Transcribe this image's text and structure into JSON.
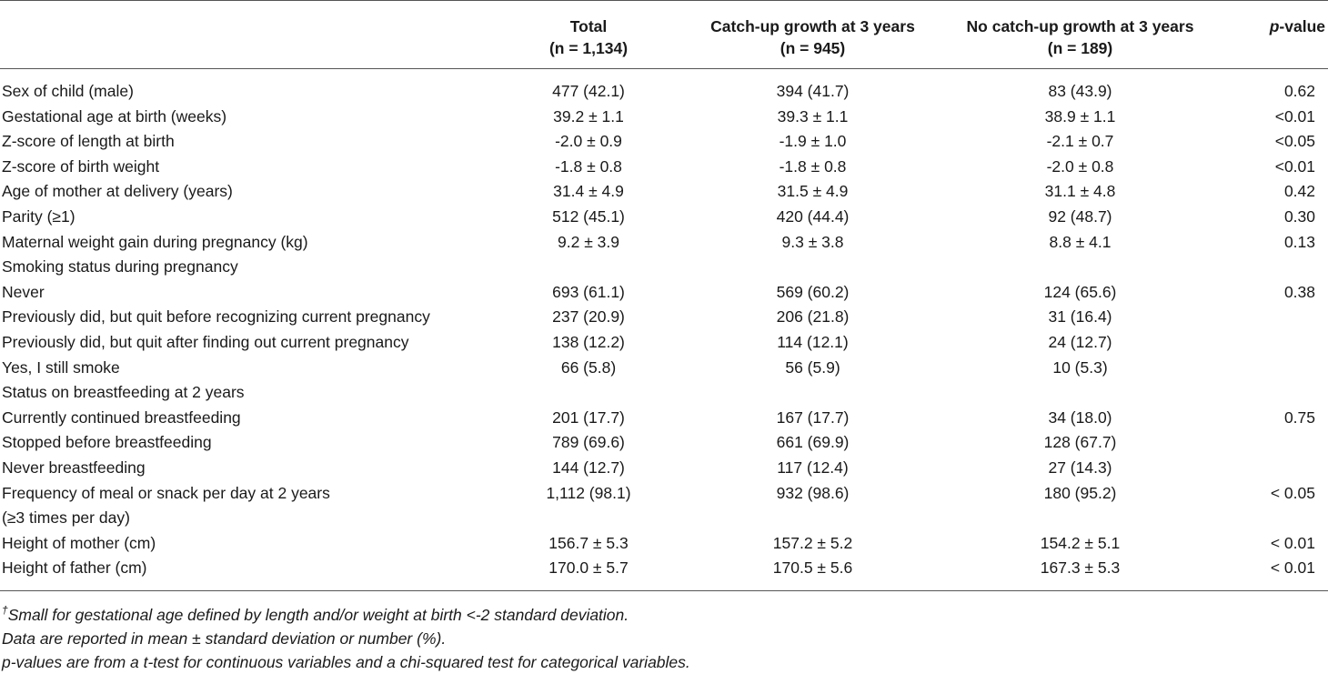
{
  "table": {
    "headers": {
      "variable": "",
      "total": {
        "label": "Total",
        "n": "(n = 1,134)"
      },
      "catch_up": {
        "label": "Catch-up growth at 3 years",
        "n": "(n = 945)"
      },
      "no_catch_up": {
        "label": "No catch-up growth at 3 years",
        "n": "(n = 189)"
      },
      "p_value": {
        "italic": "p",
        "rest": "-value"
      }
    },
    "rows": [
      {
        "variable": "Sex of child (male)",
        "total": "477 (42.1)",
        "catch_up": "394 (41.7)",
        "no_catch_up": "83 (43.9)",
        "p": "0.62"
      },
      {
        "variable": "Gestational age at birth (weeks)",
        "total": "39.2 ± 1.1",
        "catch_up": "39.3 ± 1.1",
        "no_catch_up": "38.9 ± 1.1",
        "p": "<0.01"
      },
      {
        "variable": "Z-score of length at birth",
        "total": "-2.0 ± 0.9",
        "catch_up": "-1.9 ± 1.0",
        "no_catch_up": "-2.1 ± 0.7",
        "p": "<0.05"
      },
      {
        "variable": "Z-score of birth weight",
        "total": "-1.8 ± 0.8",
        "catch_up": "-1.8 ± 0.8",
        "no_catch_up": "-2.0 ± 0.8",
        "p": "<0.01"
      },
      {
        "variable": "Age of mother at delivery (years)",
        "total": "31.4 ± 4.9",
        "catch_up": "31.5 ± 4.9",
        "no_catch_up": "31.1 ± 4.8",
        "p": "0.42"
      },
      {
        "variable": "Parity (≥1)",
        "total": "512 (45.1)",
        "catch_up": "420 (44.4)",
        "no_catch_up": "92 (48.7)",
        "p": "0.30"
      },
      {
        "variable": "Maternal weight gain during pregnancy (kg)",
        "total": "9.2 ± 3.9",
        "catch_up": "9.3 ± 3.8",
        "no_catch_up": "8.8 ± 4.1",
        "p": "0.13"
      },
      {
        "variable": "Smoking status during pregnancy",
        "total": "",
        "catch_up": "",
        "no_catch_up": "",
        "p": ""
      },
      {
        "variable": "Never",
        "total": "693 (61.1)",
        "catch_up": "569 (60.2)",
        "no_catch_up": "124 (65.6)",
        "p": "0.38"
      },
      {
        "variable": "Previously did, but quit before recognizing current pregnancy",
        "total": "237 (20.9)",
        "catch_up": "206 (21.8)",
        "no_catch_up": "31 (16.4)",
        "p": ""
      },
      {
        "variable": "Previously did, but quit after finding out current pregnancy",
        "total": "138 (12.2)",
        "catch_up": "114 (12.1)",
        "no_catch_up": "24 (12.7)",
        "p": ""
      },
      {
        "variable": "Yes, I still smoke",
        "total": "66 (5.8)",
        "catch_up": "56 (5.9)",
        "no_catch_up": "10 (5.3)",
        "p": ""
      },
      {
        "variable": "Status on breastfeeding at 2 years",
        "total": "",
        "catch_up": "",
        "no_catch_up": "",
        "p": ""
      },
      {
        "variable": "Currently continued breastfeeding",
        "total": "201 (17.7)",
        "catch_up": "167 (17.7)",
        "no_catch_up": "34 (18.0)",
        "p": "0.75"
      },
      {
        "variable": "Stopped before breastfeeding",
        "total": "789 (69.6)",
        "catch_up": "661 (69.9)",
        "no_catch_up": "128 (67.7)",
        "p": ""
      },
      {
        "variable": "Never breastfeeding",
        "total": "144 (12.7)",
        "catch_up": "117 (12.4)",
        "no_catch_up": "27 (14.3)",
        "p": ""
      },
      {
        "variable": "Frequency of meal or snack per day at 2 years",
        "variable_line2": "(≥3 times per day)",
        "total": "1,112 (98.1)",
        "catch_up": "932 (98.6)",
        "no_catch_up": "180 (95.2)",
        "p": "< 0.05"
      },
      {
        "variable": "Height of mother (cm)",
        "total": "156.7 ± 5.3",
        "catch_up": "157.2 ± 5.2",
        "no_catch_up": "154.2 ± 5.1",
        "p": "< 0.01"
      },
      {
        "variable": "Height of father (cm)",
        "total": "170.0 ± 5.7",
        "catch_up": "170.5 ± 5.6",
        "no_catch_up": "167.3 ± 5.3",
        "p": "< 0.01"
      }
    ]
  },
  "footnotes": {
    "dagger": "†",
    "sga": "Small for gestational age defined by length and/or weight at birth <-2 standard deviation.",
    "data_report": "Data are reported in mean ± standard deviation or number (%).",
    "p_values": "p-values are from a t-test for continuous variables and a chi-squared test for categorical variables."
  }
}
